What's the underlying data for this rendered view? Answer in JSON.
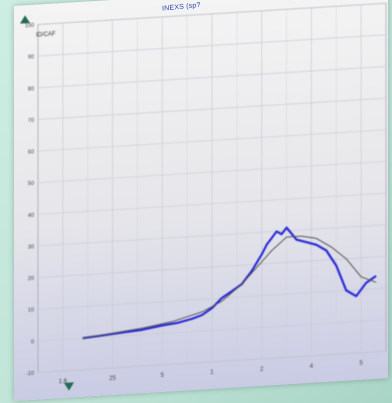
{
  "colors": {
    "accent": "#2b2bd6",
    "reference": "#555555",
    "grid": "#c9c9d3",
    "axis_marker": "#1f6b4f"
  },
  "icons": {
    "y_axis_arrow": "triangle-up-icon",
    "x_axis_arrow": "triangle-down-icon"
  },
  "chart_data": {
    "type": "line",
    "title": "INEXS (sp?",
    "ylabel": "ID/CAF",
    "xlabel": "",
    "ylim": [
      -10,
      100
    ],
    "y_ticks": [
      "100",
      "90",
      "80",
      "70",
      "60",
      "50",
      "40",
      "30",
      "20",
      "10",
      "0",
      "-10"
    ],
    "x_ticks": [
      "1.6",
      "25",
      "5",
      "1",
      "2",
      "4",
      "5"
    ],
    "x_tick_positions": [
      0,
      1,
      2,
      3,
      4,
      5,
      6
    ],
    "xlim": [
      -0.5,
      6.5
    ],
    "grid": true,
    "series": [
      {
        "name": "",
        "style": "blue",
        "x": [
          0.4,
          0.8,
          1.2,
          1.6,
          2.0,
          2.3,
          2.6,
          2.8,
          3.0,
          3.2,
          3.4,
          3.6,
          3.8,
          4.0,
          4.1,
          4.2,
          4.3,
          4.4,
          4.5,
          4.7,
          4.9,
          5.1,
          5.3,
          5.5,
          5.7,
          5.9,
          6.1,
          6.3
        ],
        "y": [
          0,
          0.5,
          1,
          1.5,
          2.5,
          3,
          4,
          5,
          7,
          10,
          12,
          14,
          18,
          23,
          26,
          28,
          30,
          29,
          31,
          27,
          26,
          25,
          23,
          18,
          10,
          8,
          12,
          14
        ]
      },
      {
        "name": "",
        "style": "gray",
        "x": [
          0.4,
          1.0,
          1.6,
          2.2,
          2.8,
          3.2,
          3.6,
          3.9,
          4.2,
          4.5,
          4.8,
          5.1,
          5.4,
          5.7,
          6.0,
          6.3
        ],
        "y": [
          0,
          1,
          2,
          3.5,
          6,
          9,
          14,
          19,
          24,
          28,
          28,
          27,
          24,
          20,
          14,
          12
        ]
      }
    ]
  }
}
